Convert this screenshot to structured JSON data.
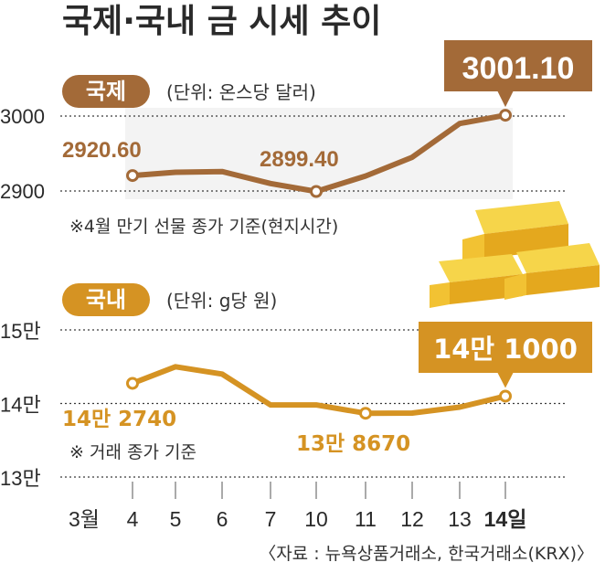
{
  "title": "국제·국내 금 시세 추이",
  "source": "〈자료 : 뉴욕상품거래소, 한국거래소(KRX)〉",
  "colors": {
    "international": "#a36a38",
    "domestic": "#d59323",
    "callout_international": "#a36a38",
    "callout_domestic": "#d59323"
  },
  "x_labels": [
    "3월",
    "4",
    "5",
    "6",
    "7",
    "10",
    "11",
    "12",
    "13",
    "14일"
  ],
  "chart_data": [
    {
      "type": "line",
      "badge": "국제",
      "unit": "(단위: 온스당 달러)",
      "note": "※4월 만기 선물 종가 기준(현지시간)",
      "x": [
        "4",
        "5",
        "6",
        "7",
        "10",
        "11",
        "12",
        "13",
        "14"
      ],
      "series": [
        {
          "values": [
            2920.6,
            2925,
            2926,
            2910,
            2899.4,
            2920,
            2945,
            2990,
            3001.1
          ]
        }
      ],
      "ytick_labels": [
        "3000",
        "2900"
      ],
      "yticks": [
        3000,
        2900
      ],
      "ylim": [
        2900,
        3000
      ],
      "data_labels": [
        {
          "index": 0,
          "text": "2920.60"
        },
        {
          "index": 4,
          "text": "2899.40"
        }
      ],
      "callout": "3001.10"
    },
    {
      "type": "line",
      "badge": "국내",
      "unit": "(단위: g당 원)",
      "note": "※ 거래 종가 기준",
      "x": [
        "4",
        "5",
        "6",
        "7",
        "10",
        "11",
        "12",
        "13",
        "14"
      ],
      "series": [
        {
          "values": [
            142740,
            145000,
            144000,
            139800,
            139800,
            138670,
            138700,
            139500,
            141000
          ]
        }
      ],
      "ytick_labels": [
        "15만",
        "14만",
        "13만"
      ],
      "yticks": [
        150000,
        140000,
        130000
      ],
      "ylim": [
        130000,
        150000
      ],
      "data_labels": [
        {
          "index": 0,
          "text": "14만 2740"
        },
        {
          "index": 5,
          "text": "13만 8670"
        }
      ],
      "callout": "14만 1000"
    }
  ]
}
